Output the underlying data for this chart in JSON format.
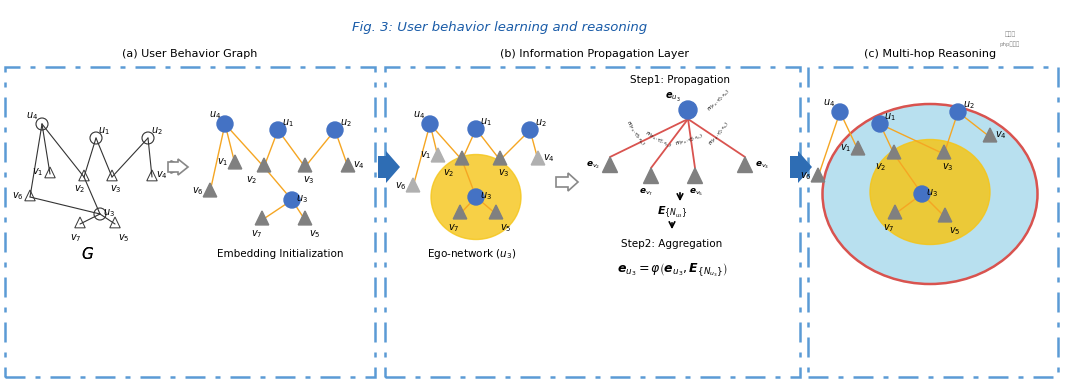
{
  "title": "Fig. 3: User behavior learning and reasoning",
  "panel_a_label": "(a) User Behavior Graph",
  "panel_b_label": "(b) Information Propagation Layer",
  "panel_c_label": "(c) Multi-hop Reasoning",
  "bg_color": "#ffffff",
  "box_color": "#5b9bd5",
  "blue_node_color": "#4472c4",
  "orange_edge_color": "#f5a623",
  "red_edge_color": "#d9534f",
  "gray_tri_color": "#808080",
  "light_gray_tri_color": "#b0b0b0",
  "yellow_circle_color": "#f5c518",
  "blue_outer_color": "#7ec8e3",
  "red_outer_color": "#d9534f",
  "arrow_color": "#2e6db4",
  "title_color": "#1a5ca8"
}
